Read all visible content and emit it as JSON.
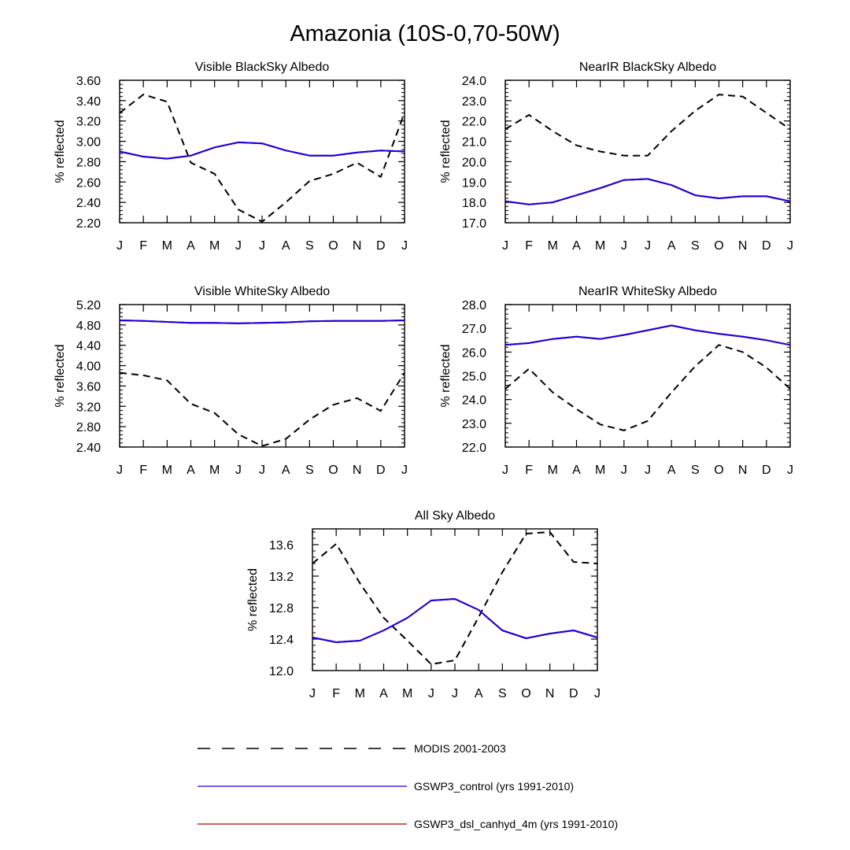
{
  "title": "Amazonia (10S-0,70-50W)",
  "colors": {
    "modis": "#000000",
    "control": "#1f00d6",
    "dsl": "#b00000"
  },
  "legend": [
    {
      "label": "MODIS 2001-2003",
      "style": "dashed",
      "color": "#000000"
    },
    {
      "label": "GSWP3_control (yrs 1991-2010)",
      "style": "solid",
      "color": "#1f00d6"
    },
    {
      "label": "GSWP3_dsl_canhyd_4m (yrs 1991-2010)",
      "style": "solid",
      "color": "#b00000"
    }
  ],
  "chart_data": [
    {
      "type": "line",
      "title": "Visible BlackSky Albedo",
      "ylabel": "% reflected",
      "categories": [
        "J",
        "F",
        "M",
        "A",
        "M",
        "J",
        "J",
        "A",
        "S",
        "O",
        "N",
        "D",
        "J"
      ],
      "ylim": [
        2.2,
        3.6
      ],
      "yticks": [
        "2.20",
        "2.40",
        "2.60",
        "2.80",
        "3.00",
        "3.20",
        "3.40",
        "3.60"
      ],
      "series": [
        {
          "name": "MODIS 2001-2003",
          "style": "dashed",
          "values": [
            3.28,
            3.46,
            3.39,
            2.79,
            2.68,
            2.33,
            2.21,
            2.4,
            2.61,
            2.68,
            2.79,
            2.65,
            3.28
          ]
        },
        {
          "name": "GSWP3_control (yrs 1991-2010)",
          "style": "solid",
          "values": [
            2.9,
            2.85,
            2.83,
            2.86,
            2.94,
            2.99,
            2.98,
            2.91,
            2.86,
            2.86,
            2.89,
            2.91,
            2.9
          ]
        },
        {
          "name": "GSWP3_dsl_canhyd_4m (yrs 1991-2010)",
          "style": "solid",
          "values": [
            2.9,
            2.85,
            2.83,
            2.86,
            2.94,
            2.99,
            2.98,
            2.91,
            2.86,
            2.86,
            2.89,
            2.91,
            2.9
          ]
        }
      ]
    },
    {
      "type": "line",
      "title": "NearIR BlackSky Albedo",
      "ylabel": "% reflected",
      "categories": [
        "J",
        "F",
        "M",
        "A",
        "M",
        "J",
        "J",
        "A",
        "S",
        "O",
        "N",
        "D",
        "J"
      ],
      "ylim": [
        17.0,
        24.0
      ],
      "yticks": [
        "17.0",
        "18.0",
        "19.0",
        "20.0",
        "21.0",
        "22.0",
        "23.0",
        "24.0"
      ],
      "series": [
        {
          "name": "MODIS 2001-2003",
          "style": "dashed",
          "values": [
            21.6,
            22.3,
            21.5,
            20.8,
            20.5,
            20.3,
            20.3,
            21.5,
            22.5,
            23.3,
            23.2,
            22.4,
            21.6
          ]
        },
        {
          "name": "GSWP3_control (yrs 1991-2010)",
          "style": "solid",
          "values": [
            18.05,
            17.9,
            18.0,
            18.35,
            18.7,
            19.1,
            19.15,
            18.85,
            18.35,
            18.2,
            18.3,
            18.3,
            18.05
          ]
        },
        {
          "name": "GSWP3_dsl_canhyd_4m (yrs 1991-2010)",
          "style": "solid",
          "values": [
            18.05,
            17.9,
            18.0,
            18.35,
            18.7,
            19.1,
            19.15,
            18.85,
            18.35,
            18.2,
            18.3,
            18.3,
            18.05
          ]
        }
      ]
    },
    {
      "type": "line",
      "title": "Visible WhiteSky Albedo",
      "ylabel": "% reflected",
      "categories": [
        "J",
        "F",
        "M",
        "A",
        "M",
        "J",
        "J",
        "A",
        "S",
        "O",
        "N",
        "D",
        "J"
      ],
      "ylim": [
        2.4,
        5.2
      ],
      "yticks": [
        "2.40",
        "2.80",
        "3.20",
        "3.60",
        "4.00",
        "4.40",
        "4.80",
        "5.20"
      ],
      "series": [
        {
          "name": "MODIS 2001-2003",
          "style": "dashed",
          "values": [
            3.86,
            3.81,
            3.71,
            3.25,
            3.07,
            2.65,
            2.42,
            2.56,
            2.94,
            3.23,
            3.36,
            3.11,
            3.86
          ]
        },
        {
          "name": "GSWP3_control (yrs 1991-2010)",
          "style": "solid",
          "values": [
            4.89,
            4.88,
            4.86,
            4.84,
            4.84,
            4.83,
            4.84,
            4.85,
            4.87,
            4.88,
            4.88,
            4.88,
            4.89
          ]
        },
        {
          "name": "GSWP3_dsl_canhyd_4m (yrs 1991-2010)",
          "style": "solid",
          "values": [
            4.89,
            4.88,
            4.86,
            4.84,
            4.84,
            4.83,
            4.84,
            4.85,
            4.87,
            4.88,
            4.88,
            4.88,
            4.89
          ]
        }
      ]
    },
    {
      "type": "line",
      "title": "NearIR WhiteSky Albedo",
      "ylabel": "% reflected",
      "categories": [
        "J",
        "F",
        "M",
        "A",
        "M",
        "J",
        "J",
        "A",
        "S",
        "O",
        "N",
        "D",
        "J"
      ],
      "ylim": [
        22.0,
        28.0
      ],
      "yticks": [
        "22.0",
        "23.0",
        "24.0",
        "25.0",
        "26.0",
        "27.0",
        "28.0"
      ],
      "series": [
        {
          "name": "MODIS 2001-2003",
          "style": "dashed",
          "values": [
            24.45,
            25.3,
            24.3,
            23.6,
            22.95,
            22.7,
            23.1,
            24.3,
            25.4,
            26.3,
            26.0,
            25.35,
            24.45
          ]
        },
        {
          "name": "GSWP3_control (yrs 1991-2010)",
          "style": "solid",
          "values": [
            26.3,
            26.38,
            26.55,
            26.65,
            26.55,
            26.72,
            26.92,
            27.12,
            26.92,
            26.77,
            26.65,
            26.5,
            26.3
          ]
        },
        {
          "name": "GSWP3_dsl_canhyd_4m (yrs 1991-2010)",
          "style": "solid",
          "values": [
            26.3,
            26.38,
            26.55,
            26.65,
            26.55,
            26.72,
            26.92,
            27.12,
            26.92,
            26.77,
            26.65,
            26.5,
            26.3
          ]
        }
      ]
    },
    {
      "type": "line",
      "title": "All Sky Albedo",
      "ylabel": "% reflected",
      "categories": [
        "J",
        "F",
        "M",
        "A",
        "M",
        "J",
        "J",
        "A",
        "S",
        "O",
        "N",
        "D",
        "J"
      ],
      "ylim": [
        12.0,
        13.8
      ],
      "yticks": [
        "12.0",
        "12.4",
        "12.8",
        "13.2",
        "13.6"
      ],
      "series": [
        {
          "name": "MODIS 2001-2003",
          "style": "dashed",
          "values": [
            13.36,
            13.61,
            13.11,
            12.67,
            12.38,
            12.08,
            12.13,
            12.68,
            13.25,
            13.74,
            13.76,
            13.38,
            13.36
          ]
        },
        {
          "name": "GSWP3_control (yrs 1991-2010)",
          "style": "solid",
          "values": [
            12.42,
            12.36,
            12.38,
            12.51,
            12.67,
            12.89,
            12.91,
            12.77,
            12.51,
            12.41,
            12.47,
            12.51,
            12.42
          ]
        },
        {
          "name": "GSWP3_dsl_canhyd_4m (yrs 1991-2010)",
          "style": "solid",
          "values": [
            12.42,
            12.36,
            12.38,
            12.51,
            12.67,
            12.89,
            12.91,
            12.77,
            12.51,
            12.41,
            12.47,
            12.51,
            12.42
          ]
        }
      ]
    }
  ]
}
